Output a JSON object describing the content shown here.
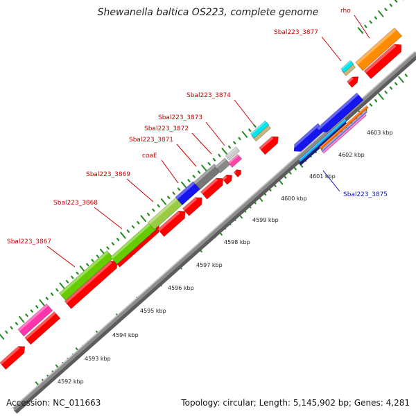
{
  "title": "Shewanella baltica OS223, complete genome",
  "footer": {
    "accession": "Accession: NC_011663",
    "summary": "Topology: circular; Length: 5,145,902 bp; Genes: 4,281"
  },
  "colors": {
    "backbone": "#8c8c8c",
    "scale": "#228b22",
    "cds": "#ff0000",
    "upper_label": "#cc0000",
    "lower_label": "#1010c0"
  },
  "kbp_labels": [
    "4592 kbp",
    "4593 kbp",
    "4594 kbp",
    "4595 kbp",
    "4596 kbp",
    "4597 kbp",
    "4598 kbp",
    "4599 kbp",
    "4600 kbp",
    "4601 kbp",
    "4602 kbp",
    "4603 kbp"
  ],
  "gene_labels": {
    "upper": [
      "Sbal223_3867",
      "Sbal223_3868",
      "Sbal223_3869",
      "coaE",
      "Sbal223_3871",
      "Sbal223_3872",
      "Sbal223_3873",
      "Sbal223_3874",
      "Sbal223_3877",
      "rho"
    ],
    "lower": [
      "Sbal223_3875"
    ]
  }
}
